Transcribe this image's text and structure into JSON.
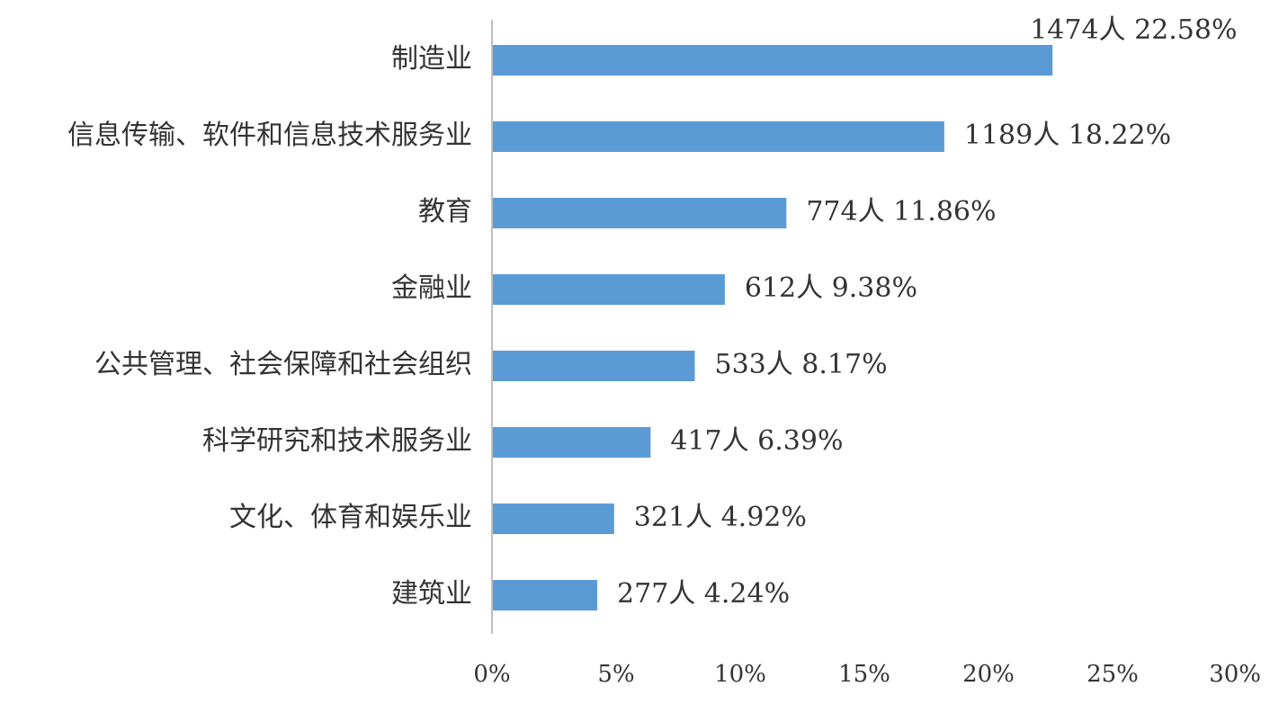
{
  "chart_data": {
    "type": "bar",
    "orientation": "horizontal",
    "categories": [
      "制造业",
      "信息传输、软件和信息技术服务业",
      "教育",
      "金融业",
      "公共管理、社会保障和社会组织",
      "科学研究和技术服务业",
      "文化、体育和娱乐业",
      "建筑业"
    ],
    "values": [
      22.58,
      18.22,
      11.86,
      9.38,
      8.17,
      6.39,
      4.92,
      4.24
    ],
    "counts": [
      1474,
      1189,
      774,
      612,
      533,
      417,
      321,
      277
    ],
    "data_labels": [
      "1474人 22.58%",
      "1189人 18.22%",
      "774人  11.86%",
      "612人  9.38%",
      "533人  8.17%",
      "417人  6.39%",
      "321人  4.92%",
      "277人  4.24%"
    ],
    "x_ticks": [
      "0%",
      "5%",
      "10%",
      "15%",
      "20%",
      "25%",
      "30%"
    ],
    "xlim": [
      0,
      30
    ],
    "title": "",
    "xlabel": "",
    "ylabel": "",
    "grid": false,
    "legend": "none",
    "bar_color": "#5b9bd5",
    "axis_color": "#bfbfbf"
  }
}
